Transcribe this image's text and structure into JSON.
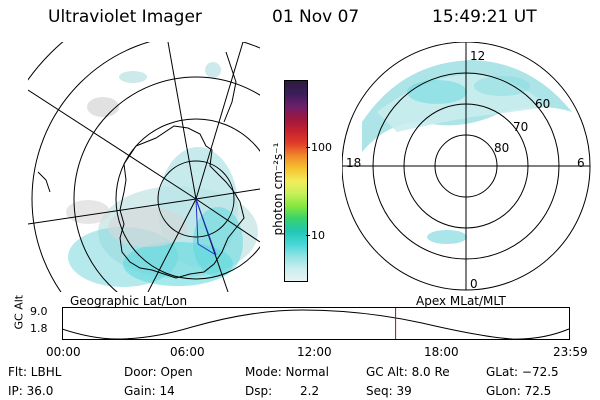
{
  "header": {
    "title": "Ultraviolet Imager",
    "date": "01 Nov 07",
    "time": "15:49:21 UT"
  },
  "left_panel": {
    "caption": "Geographic Lat/Lon"
  },
  "right_panel": {
    "caption": "Apex MLat/MLT",
    "mlt_labels": [
      "12",
      "18",
      "6",
      "0"
    ],
    "lat_labels": [
      "60",
      "70",
      "80"
    ]
  },
  "colorbar": {
    "unit_label": "photon cm⁻²s⁻¹",
    "ticks": [
      "100",
      "10"
    ],
    "colors": [
      "#2b1a3f",
      "#3a1e5a",
      "#6a1f6b",
      "#9c1740",
      "#c4222e",
      "#e23d2a",
      "#f08a2a",
      "#f6c22f",
      "#f3ec5b",
      "#c7f05a",
      "#86e73f",
      "#37d36a",
      "#22c7b3",
      "#44d6d6",
      "#8fe3e3",
      "#c9eeee",
      "#e8f3f3"
    ]
  },
  "timeline": {
    "axis_label": "GC Alt",
    "y_ticks": [
      "9.0",
      "1.8"
    ],
    "x_ticks": [
      "00:00",
      "06:00",
      "12:00",
      "18:00",
      "23:59"
    ],
    "current_time_fraction": 0.658
  },
  "info": {
    "filter": "Flt: LBHL",
    "door": "Door: Open",
    "mode": "Mode: Normal",
    "gc_alt": "GC Alt: 8.0 Re",
    "glat": "GLat: −72.5",
    "ip": "IP: 36.0",
    "gain": "Gain: 14",
    "dsp_label": "Dsp:",
    "dsp_value": "2.2",
    "seq": "Seq: 39",
    "glon": "GLon:  72.5"
  },
  "colors": {
    "aurora": "#58d8dc",
    "grey_noise": "#cfcfcf",
    "marker": "#cc0000",
    "track": "#2233cc"
  }
}
